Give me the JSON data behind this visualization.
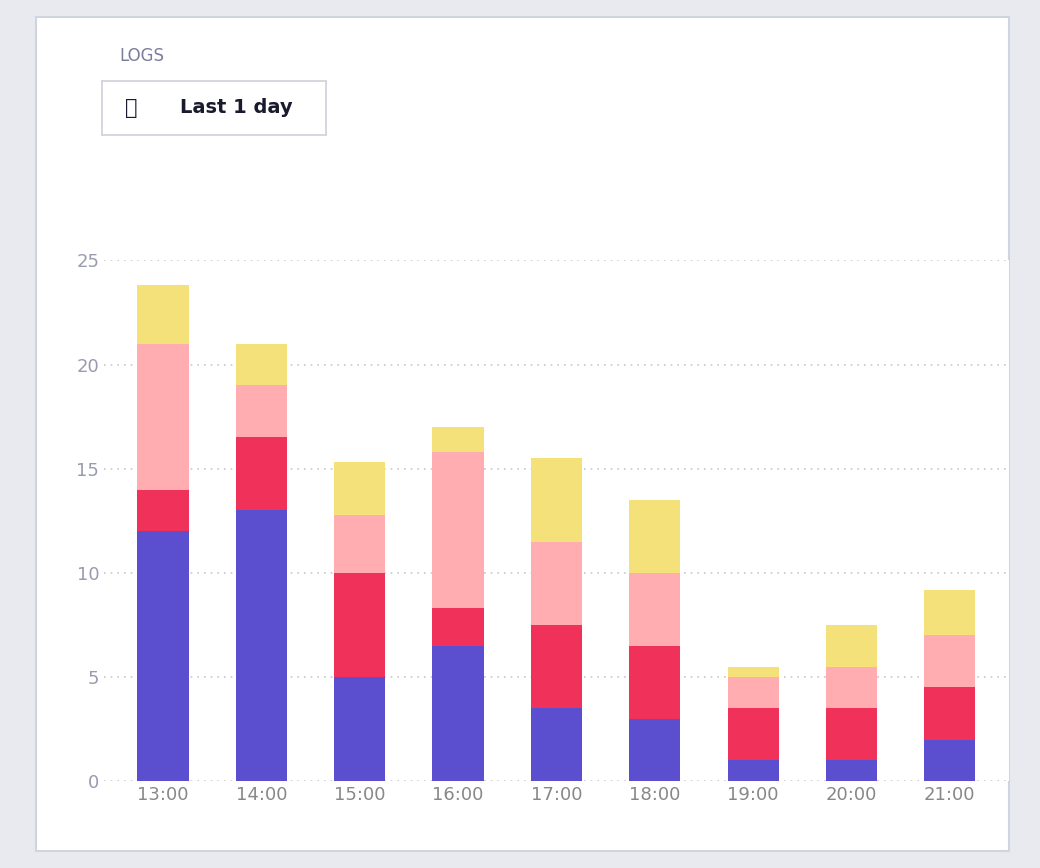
{
  "categories": [
    "13:00",
    "14:00",
    "15:00",
    "16:00",
    "17:00",
    "18:00",
    "19:00",
    "20:00",
    "21:00"
  ],
  "layers": {
    "purple": [
      12.0,
      13.0,
      5.0,
      6.5,
      3.5,
      3.0,
      1.0,
      1.0,
      2.0
    ],
    "red": [
      2.0,
      3.5,
      5.0,
      1.8,
      4.0,
      3.5,
      2.5,
      2.5,
      2.5
    ],
    "salmon": [
      7.0,
      2.5,
      2.8,
      7.5,
      4.0,
      3.5,
      1.5,
      2.0,
      2.5
    ],
    "yellow": [
      2.8,
      2.0,
      2.5,
      1.2,
      4.0,
      3.5,
      0.5,
      2.0,
      2.2
    ]
  },
  "colors": {
    "purple": "#5b4fcf",
    "red": "#f0325a",
    "salmon": "#ffadb0",
    "yellow": "#f5e17a"
  },
  "title": "LOGS",
  "subtitle": "Last 1 day",
  "ylim": [
    0,
    25
  ],
  "yticks": [
    0,
    5,
    10,
    15,
    20,
    25
  ],
  "card_bg": "#ffffff",
  "outer_bg": "#e8eaf0",
  "grid_color": "#c8c8d0",
  "bar_width": 0.52,
  "title_color": "#7a7e9a",
  "ytick_color": "#9a9ab0",
  "xtick_color": "#888888",
  "btn_border_color": "#d0d0da",
  "btn_text_color": "#1a1a2e",
  "btn_bg": "#ffffff"
}
